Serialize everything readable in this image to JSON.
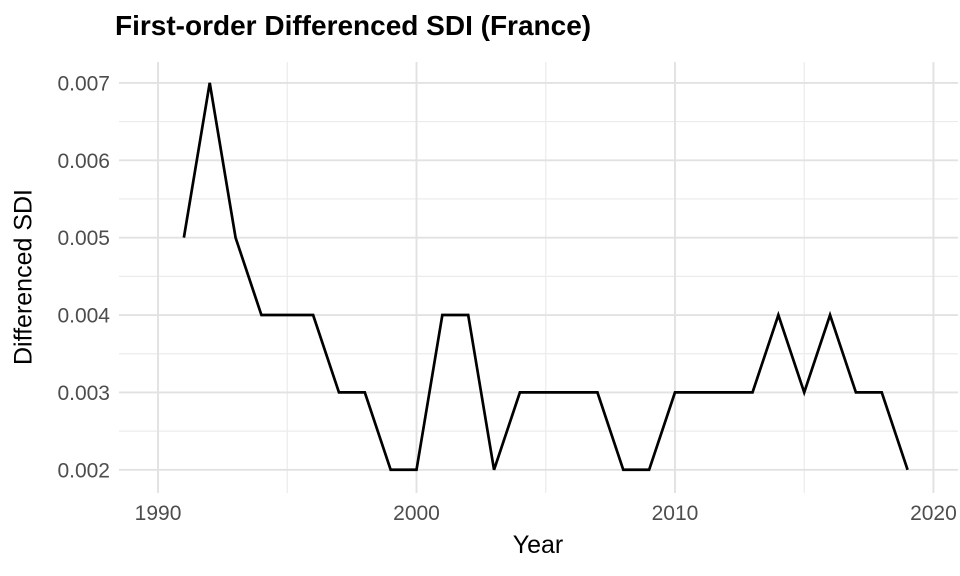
{
  "chart": {
    "title": "First-order Differenced SDI (France)",
    "xlabel": "Year",
    "ylabel": "Differenced SDI"
  },
  "chart_data": {
    "type": "line",
    "title": "First-order Differenced SDI (France)",
    "xlabel": "Year",
    "ylabel": "Differenced SDI",
    "x": [
      1991,
      1992,
      1993,
      1994,
      1995,
      1996,
      1997,
      1998,
      1999,
      2000,
      2001,
      2002,
      2003,
      2004,
      2005,
      2006,
      2007,
      2008,
      2009,
      2010,
      2011,
      2012,
      2013,
      2014,
      2015,
      2016,
      2017,
      2018,
      2019
    ],
    "y": [
      0.005,
      0.007,
      0.005,
      0.004,
      0.004,
      0.004,
      0.003,
      0.003,
      0.002,
      0.002,
      0.004,
      0.004,
      0.002,
      0.003,
      0.003,
      0.003,
      0.003,
      0.002,
      0.002,
      0.003,
      0.003,
      0.003,
      0.003,
      0.004,
      0.003,
      0.004,
      0.003,
      0.003,
      0.002
    ],
    "x_ticks_major": [
      1990,
      2000,
      2010,
      2020
    ],
    "x_tick_labels": [
      "1990",
      "2000",
      "2010",
      "2020"
    ],
    "x_ticks_minor": [
      1995,
      2005,
      2015
    ],
    "y_ticks_major": [
      0.002,
      0.003,
      0.004,
      0.005,
      0.006,
      0.007
    ],
    "y_tick_labels": [
      "0.002",
      "0.003",
      "0.004",
      "0.005",
      "0.006",
      "0.007"
    ],
    "y_ticks_minor": [
      0.0025,
      0.0035,
      0.0045,
      0.0055,
      0.0065
    ],
    "xlim": [
      1988.49,
      2020.95
    ],
    "ylim": [
      0.0017,
      0.00727
    ],
    "grid": true,
    "legend_position": "none",
    "line_color": "#000000",
    "line_width": 2.7,
    "colors": {
      "background": "#ffffff",
      "grid_major": "#e2e2e2",
      "grid_minor": "#ebebeb",
      "tick_label": "#4d4d4d",
      "axis_title": "#000000",
      "title": "#000000"
    }
  }
}
